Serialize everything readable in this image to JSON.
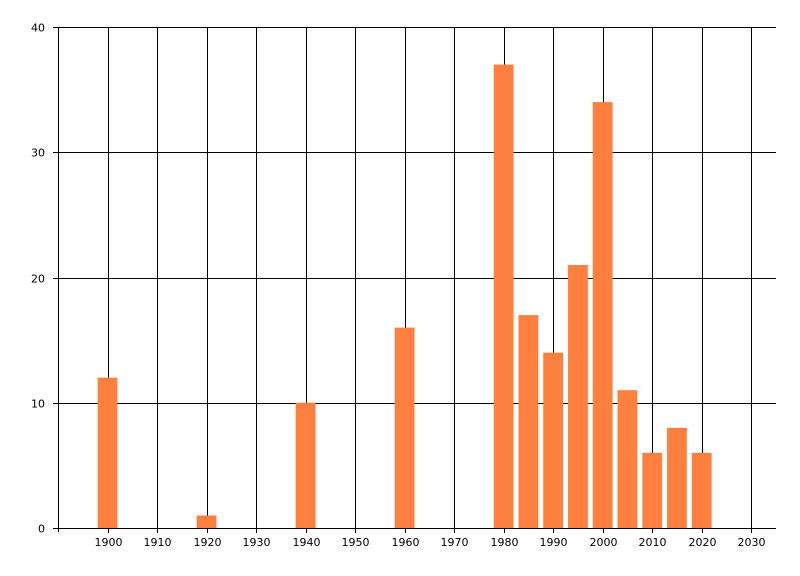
{
  "chart_data": {
    "type": "bar",
    "title": "",
    "xlabel": "",
    "ylabel": "",
    "x": [
      1900,
      1920,
      1940,
      1960,
      1980,
      1985,
      1990,
      1995,
      2000,
      2005,
      2010,
      2015,
      2020
    ],
    "values": [
      12,
      1,
      10,
      16,
      37,
      17,
      14,
      21,
      34,
      11,
      6,
      8,
      6
    ],
    "bar_width_years": 4,
    "xlim": [
      1890,
      2035
    ],
    "ylim": [
      0,
      40
    ],
    "x_ticks": [
      1900,
      1910,
      1920,
      1930,
      1940,
      1950,
      1960,
      1970,
      1980,
      1990,
      2000,
      2010,
      2020,
      2030
    ],
    "y_ticks": [
      0,
      10,
      20,
      30,
      40
    ],
    "grid": true,
    "bar_color": "#ff7f3f",
    "grid_color": "#000000"
  }
}
